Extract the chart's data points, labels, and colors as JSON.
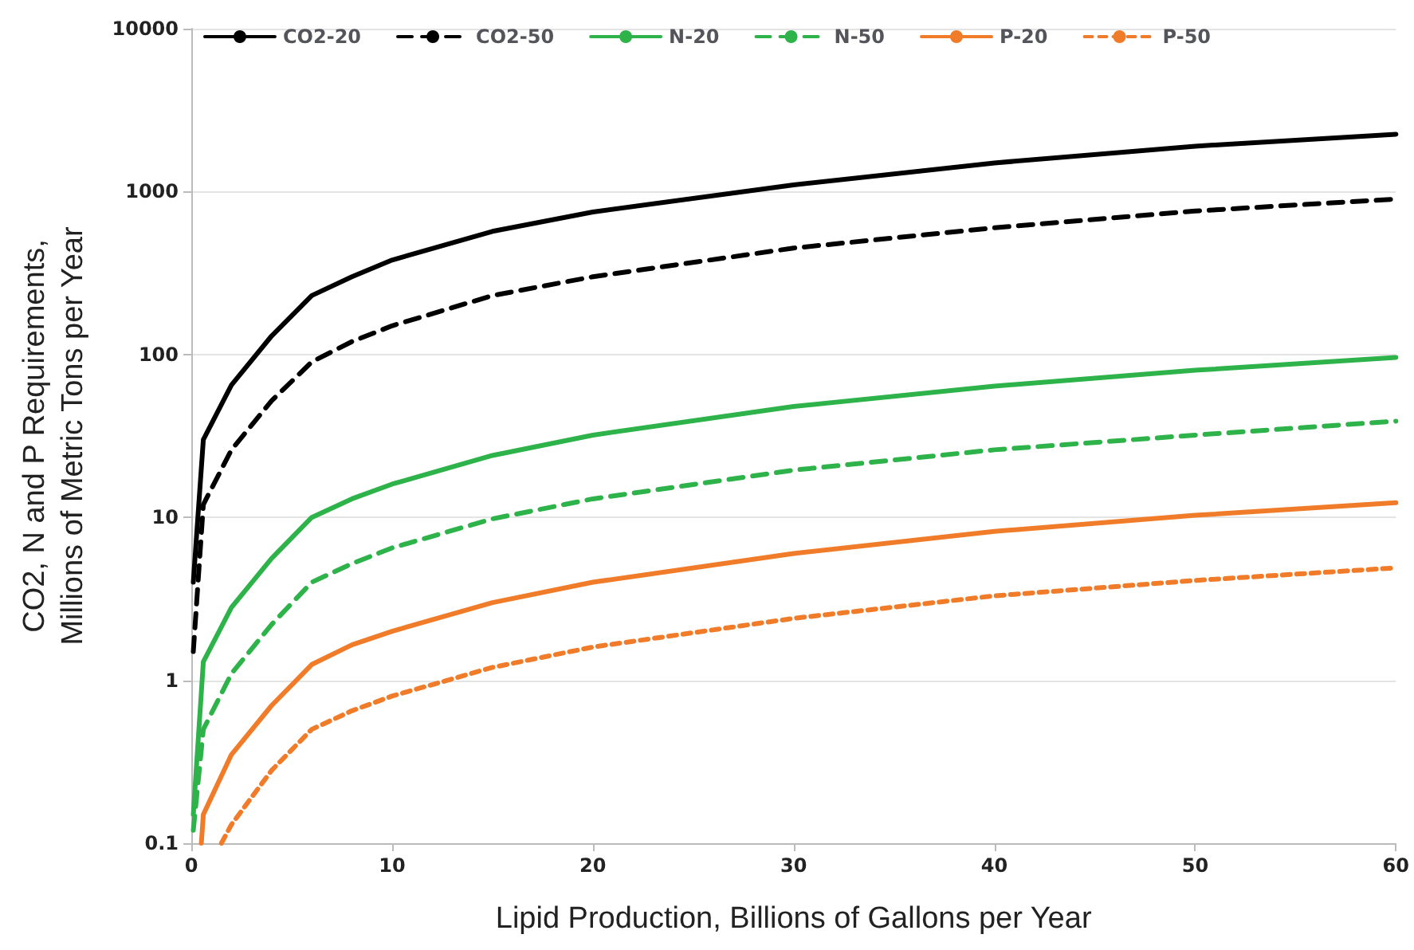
{
  "chart_data": {
    "type": "line",
    "xlabel": "Lipid Production, Billions of Gallons per Year",
    "ylabel": "CO2, N and P Requirements,\nMillions of Metric Tons per Year",
    "log": "y",
    "grid": "y",
    "legend": "top",
    "marker": "none",
    "xlim": [
      0,
      60
    ],
    "xticks": [
      0,
      10,
      20,
      30,
      40,
      50,
      60
    ],
    "ylim": [
      0.1,
      10000
    ],
    "yticks": [
      0.1,
      1,
      10,
      100,
      1000,
      10000
    ],
    "x": [
      0.1,
      0.6,
      2,
      4,
      6,
      8,
      10,
      15,
      20,
      30,
      40,
      50,
      60
    ],
    "series": [
      {
        "name": "CO2-20",
        "color": "#000000",
        "line_style": "solid",
        "values": [
          4,
          30,
          65,
          130,
          230,
          300,
          380,
          570,
          750,
          1100,
          1500,
          1900,
          2250
        ]
      },
      {
        "name": "CO2-50",
        "color": "#000000",
        "line_style": "dashed",
        "values": [
          1.5,
          12,
          26,
          52,
          90,
          120,
          150,
          230,
          300,
          450,
          600,
          760,
          900
        ]
      },
      {
        "name": "N-20",
        "color": "#2eb34a",
        "line_style": "solid",
        "values": [
          0.15,
          1.3,
          2.8,
          5.6,
          10,
          13,
          16,
          24,
          32,
          48,
          64,
          80,
          96
        ]
      },
      {
        "name": "N-50",
        "color": "#2eb34a",
        "line_style": "dashed",
        "values": [
          0.12,
          0.5,
          1.1,
          2.2,
          4,
          5.2,
          6.5,
          9.8,
          13,
          19.5,
          26,
          32,
          39
        ]
      },
      {
        "name": "P-20",
        "color": "#f07c2a",
        "line_style": "solid",
        "x": [
          0.5,
          0.6,
          2,
          4,
          6,
          8,
          10,
          15,
          20,
          30,
          40,
          50,
          60
        ],
        "values": [
          0.1,
          0.15,
          0.35,
          0.7,
          1.25,
          1.65,
          2,
          3,
          4,
          6,
          8.2,
          10.3,
          12.3
        ]
      },
      {
        "name": "P-50",
        "color": "#f07c2a",
        "line_style": "dotted",
        "x": [
          1.5,
          2,
          4,
          6,
          8,
          10,
          15,
          20,
          30,
          40,
          50,
          60
        ],
        "values": [
          0.1,
          0.13,
          0.28,
          0.5,
          0.65,
          0.8,
          1.2,
          1.6,
          2.4,
          3.3,
          4.1,
          4.9
        ]
      }
    ]
  }
}
